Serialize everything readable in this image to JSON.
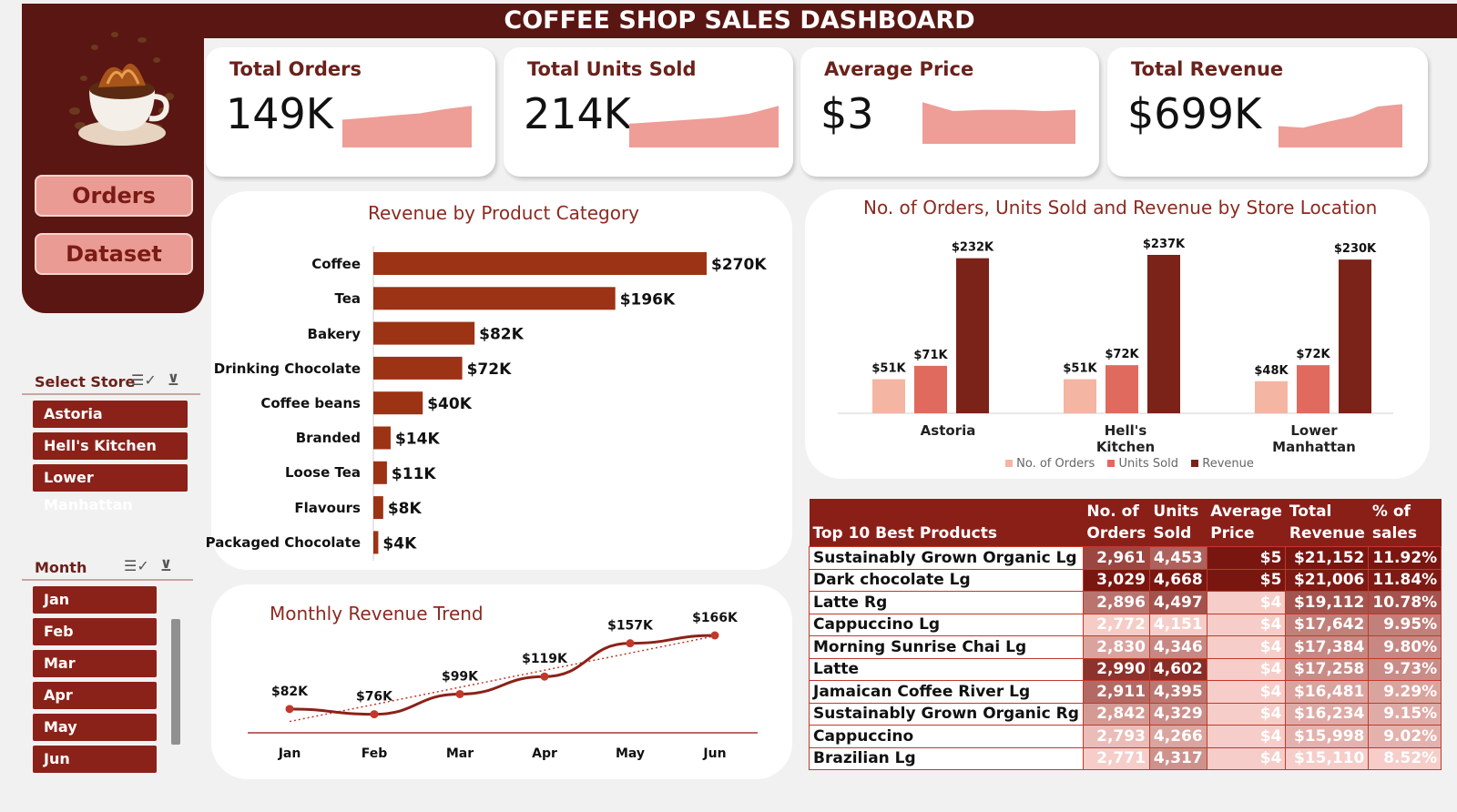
{
  "title": "COFFEE SHOP SALES DASHBOARD",
  "nav": {
    "orders": "Orders",
    "dataset": "Dataset"
  },
  "store_slicer": {
    "label": "Select Store",
    "items": [
      "Astoria",
      "Hell's Kitchen",
      "Lower Manhattan"
    ]
  },
  "month_slicer": {
    "label": "Month",
    "items": [
      "Jan",
      "Feb",
      "Mar",
      "Apr",
      "May",
      "Jun"
    ]
  },
  "kpis": [
    {
      "title": "Total Orders",
      "value": "149K",
      "trend": [
        2.6,
        2.8,
        3.0,
        3.2,
        3.6,
        3.9
      ]
    },
    {
      "title": "Total Units Sold",
      "value": "214K",
      "trend": [
        1.2,
        1.3,
        1.4,
        1.5,
        1.7,
        2.1
      ]
    },
    {
      "title": "Average Price",
      "value": "$3",
      "trend": [
        3.3,
        2.6,
        2.7,
        2.7,
        2.6,
        2.7
      ]
    },
    {
      "title": "Total Revenue",
      "value": "$699K",
      "trend": [
        0.82,
        0.76,
        0.99,
        1.19,
        1.57,
        1.66
      ]
    }
  ],
  "colors": {
    "brand": "#5a1612",
    "accent": "#ea9b93",
    "bar": "#9c3315",
    "revenue": "#7b2219",
    "units": "#e06a5e",
    "orders": "#f4b6a3",
    "sparkline": "#ee9d97"
  },
  "chart_data": [
    {
      "type": "bar",
      "title": "Revenue by Product Category",
      "orientation": "horizontal",
      "categories": [
        "Coffee",
        "Tea",
        "Bakery",
        "Drinking Chocolate",
        "Coffee beans",
        "Branded",
        "Loose Tea",
        "Flavours",
        "Packaged Chocolate"
      ],
      "values": [
        270,
        196,
        82,
        72,
        40,
        14,
        11,
        8,
        4
      ],
      "value_labels": [
        "$270K",
        "$196K",
        "$82K",
        "$72K",
        "$40K",
        "$14K",
        "$11K",
        "$8K",
        "$4K"
      ],
      "unit": "$K",
      "xlim": [
        0,
        270
      ]
    },
    {
      "type": "bar",
      "title": "No. of Orders, Units Sold and Revenue by Store Location",
      "categories": [
        "Astoria",
        "Hell's Kitchen",
        "Lower Manhattan"
      ],
      "series": [
        {
          "name": "No. of Orders",
          "values": [
            51,
            51,
            48
          ],
          "labels": [
            "$51K",
            "$51K",
            "$48K"
          ]
        },
        {
          "name": "Units Sold",
          "values": [
            71,
            72,
            72
          ],
          "labels": [
            "$71K",
            "$72K",
            "$72K"
          ]
        },
        {
          "name": "Revenue",
          "values": [
            232,
            237,
            230
          ],
          "labels": [
            "$232K",
            "$237K",
            "$230K"
          ]
        }
      ],
      "legend": "bottom",
      "ylim": [
        0,
        240
      ]
    },
    {
      "type": "line",
      "title": "Monthly Revenue Trend",
      "x": [
        "Jan",
        "Feb",
        "Mar",
        "Apr",
        "May",
        "Jun"
      ],
      "values": [
        82,
        76,
        99,
        119,
        157,
        166
      ],
      "value_labels": [
        "$82K",
        "$76K",
        "$99K",
        "$119K",
        "$157K",
        "$166K"
      ],
      "trendline": "linear",
      "ylim": [
        0,
        180
      ]
    },
    {
      "type": "table",
      "title": "Top 10 Best Products",
      "columns": [
        "Top 10 Best Products",
        "No. of Orders",
        "Units Sold",
        "Average Price",
        "Total Revenue",
        "% of sales"
      ],
      "header_lines": [
        [
          "Top 10 Best Products"
        ],
        [
          "No. of",
          "Orders"
        ],
        [
          "Units",
          "Sold"
        ],
        [
          "Average",
          "Price"
        ],
        [
          "Total",
          "Revenue"
        ],
        [
          "% of",
          "sales"
        ]
      ],
      "rows": [
        [
          "Sustainably Grown Organic Lg",
          "2,961",
          "4,453",
          "$5",
          "$21,152",
          "11.92%"
        ],
        [
          "Dark chocolate Lg",
          "3,029",
          "4,668",
          "$5",
          "$21,006",
          "11.84%"
        ],
        [
          "Latte Rg",
          "2,896",
          "4,497",
          "$4",
          "$19,112",
          "10.78%"
        ],
        [
          "Cappuccino Lg",
          "2,772",
          "4,151",
          "$4",
          "$17,642",
          "9.95%"
        ],
        [
          "Morning Sunrise Chai Lg",
          "2,830",
          "4,346",
          "$4",
          "$17,384",
          "9.80%"
        ],
        [
          "Latte",
          "2,990",
          "4,602",
          "$4",
          "$17,258",
          "9.73%"
        ],
        [
          "Jamaican Coffee River Lg",
          "2,911",
          "4,395",
          "$4",
          "$16,481",
          "9.29%"
        ],
        [
          "Sustainably Grown Organic Rg",
          "2,842",
          "4,329",
          "$4",
          "$16,234",
          "9.15%"
        ],
        [
          "Cappuccino",
          "2,793",
          "4,266",
          "$4",
          "$15,998",
          "9.02%"
        ],
        [
          "Brazilian Lg",
          "2,771",
          "4,317",
          "$4",
          "$15,110",
          "8.52%"
        ]
      ]
    }
  ]
}
